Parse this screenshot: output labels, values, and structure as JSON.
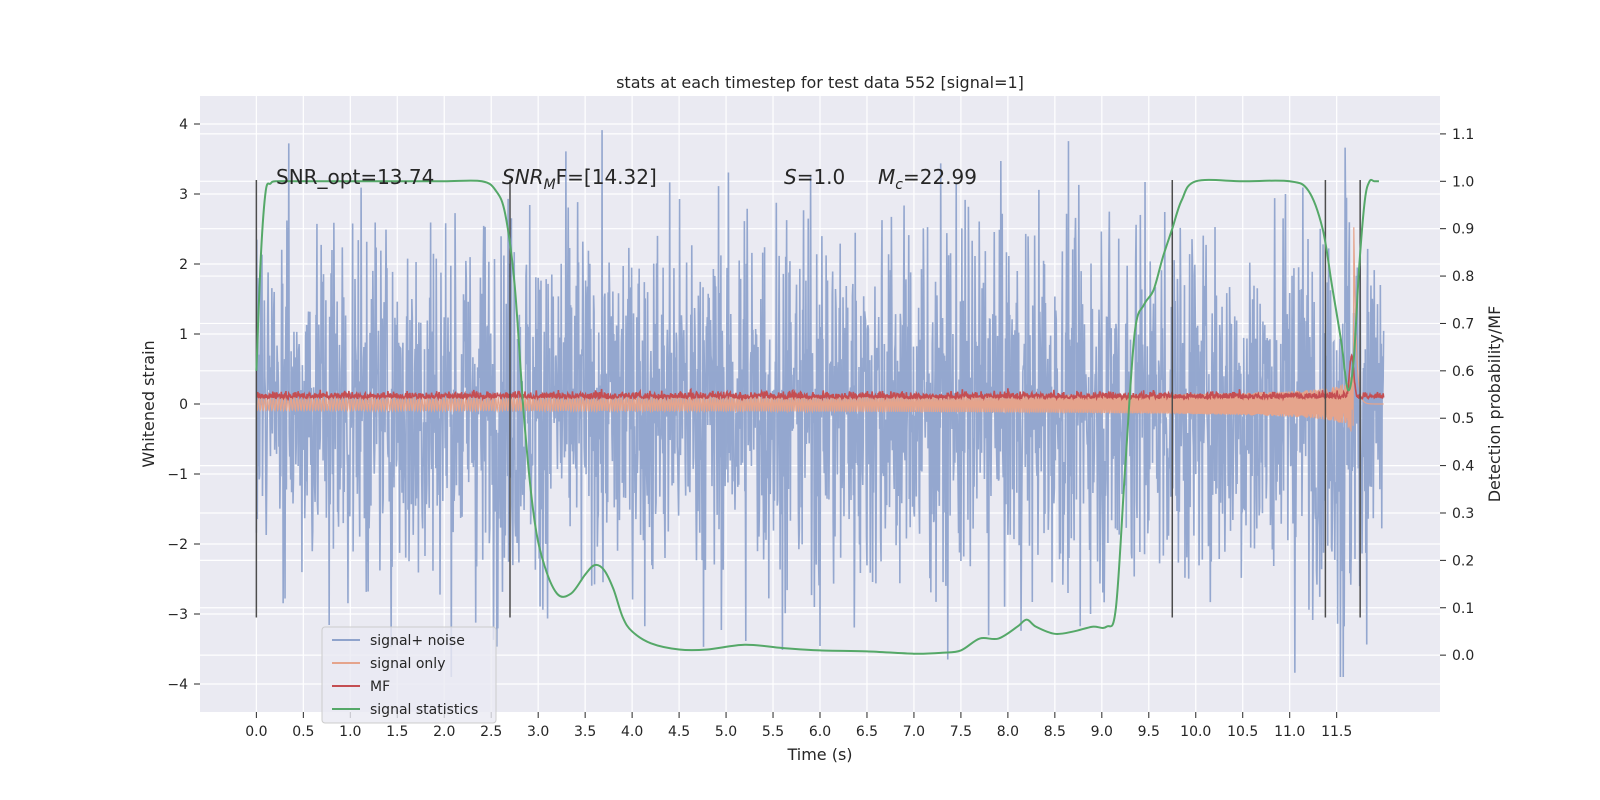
{
  "chart_data": {
    "type": "line",
    "title": "stats at each timestep for test data 552 [signal=1]",
    "xlabel": "Time (s)",
    "ylabel": "Whitened strain",
    "y2label": "Detection probability/MF",
    "xlim": [
      -0.6,
      12.6
    ],
    "ylim": [
      -4.4,
      4.4
    ],
    "y2lim": [
      -0.12,
      1.18
    ],
    "xticks": [
      0.0,
      0.5,
      1.0,
      1.5,
      2.0,
      2.5,
      3.0,
      3.5,
      4.0,
      4.5,
      5.0,
      5.5,
      6.0,
      6.5,
      7.0,
      7.5,
      8.0,
      8.5,
      9.0,
      9.5,
      10.0,
      10.5,
      11.0,
      11.5
    ],
    "xtick_labels": [
      "0.0",
      "0.5",
      "1.0",
      "1.5",
      "2.0",
      "2.5",
      "3.0",
      "3.5",
      "4.0",
      "4.5",
      "5.0",
      "5.5",
      "6.0",
      "6.5",
      "7.0",
      "7.5",
      "8.0",
      "8.5",
      "9.0",
      "9.5",
      "10.0",
      "10.5",
      "11.0",
      "11.5"
    ],
    "yticks": [
      -4,
      -3,
      -2,
      -1,
      0,
      1,
      2,
      3,
      4
    ],
    "ytick_labels": [
      "−4",
      "−3",
      "−2",
      "−1",
      "0",
      "1",
      "2",
      "3",
      "4"
    ],
    "y2ticks": [
      0.0,
      0.1,
      0.2,
      0.3,
      0.4,
      0.5,
      0.6,
      0.7,
      0.8,
      0.9,
      1.0,
      1.1
    ],
    "y2tick_labels": [
      "0.0",
      "0.1",
      "0.2",
      "0.3",
      "0.4",
      "0.5",
      "0.6",
      "0.7",
      "0.8",
      "0.9",
      "1.0",
      "1.1"
    ],
    "grid": true,
    "legend_position": "bottom-left",
    "noise": {
      "t_start": 0.0,
      "t_end": 12.0,
      "std": 1.3
    },
    "series": [
      {
        "name": "signal+ noise",
        "color": "#8fa3cc",
        "axis": "left",
        "kind": "noise"
      },
      {
        "name": "signal only",
        "color": "#e5a48c",
        "axis": "left",
        "kind": "chirp"
      },
      {
        "name": "MF",
        "color": "#c44e52",
        "axis": "left",
        "kind": "mf"
      },
      {
        "name": "signal statistics",
        "color": "#55a868",
        "axis": "right",
        "kind": "curve",
        "x": [
          0.0,
          0.05,
          0.1,
          0.15,
          0.2,
          0.4,
          0.8,
          1.5,
          2.0,
          2.4,
          2.55,
          2.65,
          2.75,
          2.85,
          2.95,
          3.05,
          3.2,
          3.35,
          3.5,
          3.6,
          3.7,
          3.8,
          3.9,
          4.0,
          4.2,
          4.5,
          4.8,
          5.2,
          5.6,
          6.0,
          6.5,
          7.0,
          7.3,
          7.5,
          7.7,
          7.9,
          8.1,
          8.2,
          8.3,
          8.5,
          8.7,
          8.9,
          9.05,
          9.15,
          9.25,
          9.35,
          9.45,
          9.55,
          9.65,
          9.75,
          9.85,
          10.0,
          10.5,
          11.0,
          11.2,
          11.35,
          11.45,
          11.55,
          11.62,
          11.68,
          11.74,
          11.8,
          11.85,
          11.9,
          11.95
        ],
        "y": [
          0.6,
          0.85,
          0.98,
          0.995,
          1.0,
          1.0,
          1.0,
          1.0,
          1.0,
          1.0,
          0.98,
          0.93,
          0.78,
          0.5,
          0.3,
          0.2,
          0.13,
          0.13,
          0.17,
          0.19,
          0.18,
          0.14,
          0.08,
          0.05,
          0.025,
          0.012,
          0.012,
          0.022,
          0.015,
          0.01,
          0.008,
          0.003,
          0.005,
          0.01,
          0.035,
          0.035,
          0.06,
          0.075,
          0.06,
          0.045,
          0.05,
          0.06,
          0.06,
          0.1,
          0.4,
          0.68,
          0.74,
          0.77,
          0.84,
          0.9,
          0.96,
          1.0,
          1.0,
          1.0,
          0.98,
          0.9,
          0.78,
          0.66,
          0.56,
          0.62,
          0.82,
          0.96,
          1.0,
          1.0,
          1.0
        ]
      }
    ],
    "vlines": [
      0.0,
      2.7,
      9.75,
      11.38,
      11.75
    ],
    "vline_range": [
      -3.05,
      3.2
    ],
    "annotations": {
      "snr_opt": "SNR_opt=13.74",
      "snr_mf_base": "SNR",
      "snr_mf_sub": "M",
      "snr_mf_rest": "F=[14.32]",
      "s_base": "S",
      "s_rest": "=1.0",
      "mc_base": "M",
      "mc_sub": "c",
      "mc_rest": "=22.99"
    }
  }
}
